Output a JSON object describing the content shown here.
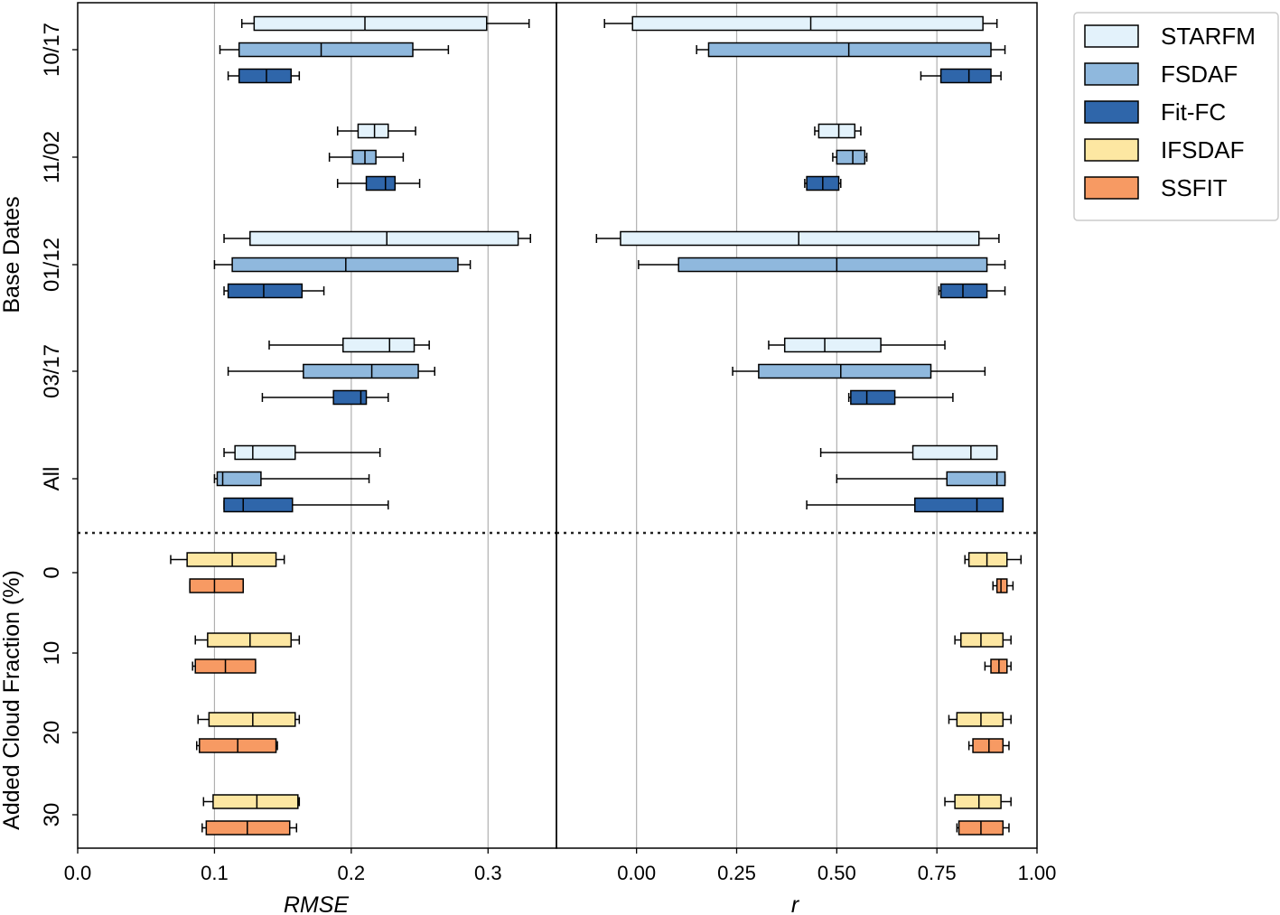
{
  "chart_data": {
    "type": "box",
    "yaxis_title_top": "Base Dates",
    "yaxis_title_bottom": "Added Cloud Fraction (%)",
    "series_names": [
      "STARFM",
      "FSDAF",
      "Fit-FC",
      "IFSDAF",
      "SSFIT"
    ],
    "colors": {
      "STARFM": "#e3f2fb",
      "FSDAF": "#8fb8dd",
      "Fit-FC": "#2f66aa",
      "IFSDAF": "#fde7a2",
      "SSFIT": "#f79a63"
    },
    "legend": [
      "STARFM",
      "FSDAF",
      "Fit-FC",
      "IFSDAF",
      "SSFIT"
    ],
    "legend_position": "outside-top-right",
    "groups": [
      {
        "label": "10/17",
        "section": "base"
      },
      {
        "label": "11/02",
        "section": "base"
      },
      {
        "label": "01/12",
        "section": "base"
      },
      {
        "label": "03/17",
        "section": "base"
      },
      {
        "label": "All",
        "section": "base"
      },
      {
        "label": "0",
        "section": "cloud"
      },
      {
        "label": "10",
        "section": "cloud"
      },
      {
        "label": "20",
        "section": "cloud"
      },
      {
        "label": "30",
        "section": "cloud"
      }
    ],
    "panels": [
      {
        "xlabel": "RMSE",
        "xlim": [
          0.0,
          0.35
        ],
        "xticks": [
          0.0,
          0.1,
          0.2,
          0.3
        ],
        "xticklabels": [
          "0.0",
          "0.1",
          "0.2",
          "0.3"
        ],
        "grid": "vertical",
        "boxes": [
          {
            "group": "10/17",
            "series": "STARFM",
            "whislo": 0.12,
            "q1": 0.129,
            "med": 0.21,
            "q3": 0.299,
            "whishi": 0.33
          },
          {
            "group": "10/17",
            "series": "FSDAF",
            "whislo": 0.104,
            "q1": 0.118,
            "med": 0.178,
            "q3": 0.245,
            "whishi": 0.271
          },
          {
            "group": "10/17",
            "series": "Fit-FC",
            "whislo": 0.11,
            "q1": 0.118,
            "med": 0.138,
            "q3": 0.156,
            "whishi": 0.162
          },
          {
            "group": "11/02",
            "series": "STARFM",
            "whislo": 0.19,
            "q1": 0.205,
            "med": 0.217,
            "q3": 0.227,
            "whishi": 0.247
          },
          {
            "group": "11/02",
            "series": "FSDAF",
            "whislo": 0.184,
            "q1": 0.201,
            "med": 0.21,
            "q3": 0.218,
            "whishi": 0.238
          },
          {
            "group": "11/02",
            "series": "Fit-FC",
            "whislo": 0.19,
            "q1": 0.211,
            "med": 0.225,
            "q3": 0.232,
            "whishi": 0.25
          },
          {
            "group": "01/12",
            "series": "STARFM",
            "whislo": 0.107,
            "q1": 0.126,
            "med": 0.226,
            "q3": 0.322,
            "whishi": 0.331
          },
          {
            "group": "01/12",
            "series": "FSDAF",
            "whislo": 0.1,
            "q1": 0.113,
            "med": 0.196,
            "q3": 0.278,
            "whishi": 0.287
          },
          {
            "group": "01/12",
            "series": "Fit-FC",
            "whislo": 0.107,
            "q1": 0.11,
            "med": 0.136,
            "q3": 0.164,
            "whishi": 0.18
          },
          {
            "group": "03/17",
            "series": "STARFM",
            "whislo": 0.14,
            "q1": 0.194,
            "med": 0.228,
            "q3": 0.246,
            "whishi": 0.257
          },
          {
            "group": "03/17",
            "series": "FSDAF",
            "whislo": 0.11,
            "q1": 0.165,
            "med": 0.215,
            "q3": 0.249,
            "whishi": 0.261
          },
          {
            "group": "03/17",
            "series": "Fit-FC",
            "whislo": 0.135,
            "q1": 0.187,
            "med": 0.207,
            "q3": 0.211,
            "whishi": 0.227
          },
          {
            "group": "All",
            "series": "STARFM",
            "whislo": 0.107,
            "q1": 0.115,
            "med": 0.128,
            "q3": 0.159,
            "whishi": 0.221
          },
          {
            "group": "All",
            "series": "FSDAF",
            "whislo": 0.1,
            "q1": 0.102,
            "med": 0.106,
            "q3": 0.134,
            "whishi": 0.213
          },
          {
            "group": "All",
            "series": "Fit-FC",
            "whislo": 0.107,
            "q1": 0.107,
            "med": 0.121,
            "q3": 0.157,
            "whishi": 0.227
          },
          {
            "group": "0",
            "series": "IFSDAF",
            "whislo": 0.068,
            "q1": 0.08,
            "med": 0.113,
            "q3": 0.145,
            "whishi": 0.151
          },
          {
            "group": "0",
            "series": "SSFIT",
            "whislo": 0.082,
            "q1": 0.082,
            "med": 0.1,
            "q3": 0.121,
            "whishi": 0.121
          },
          {
            "group": "10",
            "series": "IFSDAF",
            "whislo": 0.086,
            "q1": 0.095,
            "med": 0.126,
            "q3": 0.156,
            "whishi": 0.162
          },
          {
            "group": "10",
            "series": "SSFIT",
            "whislo": 0.084,
            "q1": 0.086,
            "med": 0.108,
            "q3": 0.13,
            "whishi": 0.13
          },
          {
            "group": "20",
            "series": "IFSDAF",
            "whislo": 0.088,
            "q1": 0.096,
            "med": 0.128,
            "q3": 0.159,
            "whishi": 0.162
          },
          {
            "group": "20",
            "series": "SSFIT",
            "whislo": 0.087,
            "q1": 0.089,
            "med": 0.117,
            "q3": 0.145,
            "whishi": 0.146
          },
          {
            "group": "30",
            "series": "IFSDAF",
            "whislo": 0.092,
            "q1": 0.099,
            "med": 0.131,
            "q3": 0.161,
            "whishi": 0.162
          },
          {
            "group": "30",
            "series": "SSFIT",
            "whislo": 0.091,
            "q1": 0.094,
            "med": 0.124,
            "q3": 0.155,
            "whishi": 0.16
          }
        ]
      },
      {
        "xlabel": "r",
        "xlim": [
          -0.2,
          1.0
        ],
        "xticks": [
          0.0,
          0.25,
          0.5,
          0.75,
          1.0
        ],
        "xticklabels": [
          "0.00",
          "0.25",
          "0.50",
          "0.75",
          "1.00"
        ],
        "grid": "vertical",
        "boxes": [
          {
            "group": "10/17",
            "series": "STARFM",
            "whislo": -0.08,
            "q1": -0.01,
            "med": 0.435,
            "q3": 0.865,
            "whishi": 0.9
          },
          {
            "group": "10/17",
            "series": "FSDAF",
            "whislo": 0.15,
            "q1": 0.18,
            "med": 0.53,
            "q3": 0.885,
            "whishi": 0.92
          },
          {
            "group": "10/17",
            "series": "Fit-FC",
            "whislo": 0.71,
            "q1": 0.76,
            "med": 0.83,
            "q3": 0.885,
            "whishi": 0.91
          },
          {
            "group": "11/02",
            "series": "STARFM",
            "whislo": 0.445,
            "q1": 0.455,
            "med": 0.505,
            "q3": 0.545,
            "whishi": 0.56
          },
          {
            "group": "11/02",
            "series": "FSDAF",
            "whislo": 0.49,
            "q1": 0.5,
            "med": 0.54,
            "q3": 0.57,
            "whishi": 0.575
          },
          {
            "group": "11/02",
            "series": "Fit-FC",
            "whislo": 0.42,
            "q1": 0.425,
            "med": 0.465,
            "q3": 0.505,
            "whishi": 0.51
          },
          {
            "group": "01/12",
            "series": "STARFM",
            "whislo": -0.1,
            "q1": -0.04,
            "med": 0.405,
            "q3": 0.855,
            "whishi": 0.905
          },
          {
            "group": "01/12",
            "series": "FSDAF",
            "whislo": 0.005,
            "q1": 0.105,
            "med": 0.5,
            "q3": 0.875,
            "whishi": 0.92
          },
          {
            "group": "01/12",
            "series": "Fit-FC",
            "whislo": 0.755,
            "q1": 0.76,
            "med": 0.815,
            "q3": 0.875,
            "whishi": 0.92
          },
          {
            "group": "03/17",
            "series": "STARFM",
            "whislo": 0.33,
            "q1": 0.37,
            "med": 0.47,
            "q3": 0.61,
            "whishi": 0.77
          },
          {
            "group": "03/17",
            "series": "FSDAF",
            "whislo": 0.24,
            "q1": 0.305,
            "med": 0.51,
            "q3": 0.735,
            "whishi": 0.87
          },
          {
            "group": "03/17",
            "series": "Fit-FC",
            "whislo": 0.53,
            "q1": 0.535,
            "med": 0.575,
            "q3": 0.645,
            "whishi": 0.79
          },
          {
            "group": "All",
            "series": "STARFM",
            "whislo": 0.46,
            "q1": 0.69,
            "med": 0.835,
            "q3": 0.9,
            "whishi": 0.9
          },
          {
            "group": "All",
            "series": "FSDAF",
            "whislo": 0.5,
            "q1": 0.775,
            "med": 0.9,
            "q3": 0.92,
            "whishi": 0.92
          },
          {
            "group": "All",
            "series": "Fit-FC",
            "whislo": 0.425,
            "q1": 0.695,
            "med": 0.85,
            "q3": 0.915,
            "whishi": 0.915
          },
          {
            "group": "0",
            "series": "IFSDAF",
            "whislo": 0.82,
            "q1": 0.83,
            "med": 0.875,
            "q3": 0.925,
            "whishi": 0.96
          },
          {
            "group": "0",
            "series": "SSFIT",
            "whislo": 0.89,
            "q1": 0.9,
            "med": 0.91,
            "q3": 0.925,
            "whishi": 0.94
          },
          {
            "group": "10",
            "series": "IFSDAF",
            "whislo": 0.795,
            "q1": 0.81,
            "med": 0.86,
            "q3": 0.915,
            "whishi": 0.935
          },
          {
            "group": "10",
            "series": "SSFIT",
            "whislo": 0.87,
            "q1": 0.885,
            "med": 0.905,
            "q3": 0.925,
            "whishi": 0.935
          },
          {
            "group": "20",
            "series": "IFSDAF",
            "whislo": 0.78,
            "q1": 0.8,
            "med": 0.86,
            "q3": 0.915,
            "whishi": 0.935
          },
          {
            "group": "20",
            "series": "SSFIT",
            "whislo": 0.83,
            "q1": 0.84,
            "med": 0.88,
            "q3": 0.915,
            "whishi": 0.93
          },
          {
            "group": "30",
            "series": "IFSDAF",
            "whislo": 0.77,
            "q1": 0.795,
            "med": 0.855,
            "q3": 0.91,
            "whishi": 0.935
          },
          {
            "group": "30",
            "series": "SSFIT",
            "whislo": 0.8,
            "q1": 0.805,
            "med": 0.86,
            "q3": 0.915,
            "whishi": 0.93
          }
        ]
      }
    ]
  }
}
